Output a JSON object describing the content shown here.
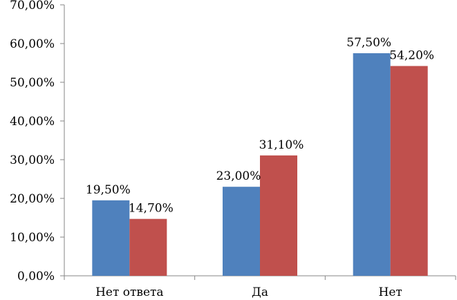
{
  "chart_data": {
    "type": "bar",
    "title": "",
    "xlabel": "",
    "ylabel": "",
    "categories": [
      "Нет ответа",
      "Да",
      "Нет"
    ],
    "series": [
      {
        "values": [
          19.5,
          23.0,
          57.5
        ],
        "labels": [
          "19,50%",
          "23,00%",
          "57,50%"
        ],
        "color": "#4F81BD"
      },
      {
        "values": [
          14.7,
          31.1,
          54.2
        ],
        "labels": [
          "14,70%",
          "31,10%",
          "54,20%"
        ],
        "color": "#C0504D"
      }
    ],
    "ylim": [
      0,
      70
    ],
    "yticks": [
      0,
      10,
      20,
      30,
      40,
      50,
      60,
      70
    ],
    "ytick_labels": [
      "0,00%",
      "10,00%",
      "20,00%",
      "30,00%",
      "40,00%",
      "50,00%",
      "60,00%",
      "70,00%"
    ],
    "grid": false,
    "legend": "none",
    "axis_color": "#868686"
  }
}
